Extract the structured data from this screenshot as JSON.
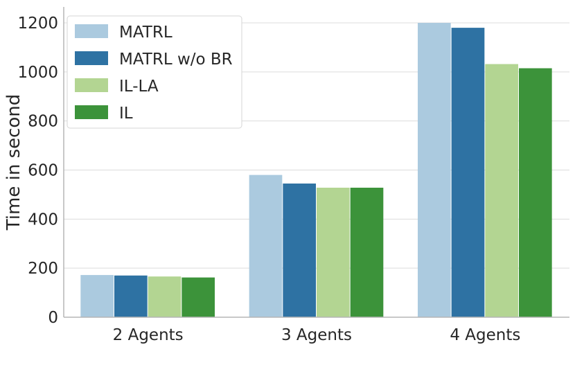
{
  "chart_data": {
    "type": "bar",
    "categories": [
      "2 Agents",
      "3 Agents",
      "4 Agents"
    ],
    "series": [
      {
        "name": "MATRL",
        "color": "#abcadf",
        "values": [
          172,
          580,
          1200
        ]
      },
      {
        "name": "MATRL w/o BR",
        "color": "#2e72a3",
        "values": [
          170,
          545,
          1180
        ]
      },
      {
        "name": "IL-LA",
        "color": "#b3d592",
        "values": [
          166,
          528,
          1032
        ]
      },
      {
        "name": "IL",
        "color": "#3c933a",
        "values": [
          162,
          528,
          1015
        ]
      }
    ],
    "title": "",
    "xlabel": "",
    "ylabel": "Time in second",
    "ylim": [
      0,
      1265
    ],
    "yticks": [
      0,
      200,
      400,
      600,
      800,
      1000,
      1200
    ],
    "grid": "horizontal",
    "legend_position": "top-left"
  }
}
